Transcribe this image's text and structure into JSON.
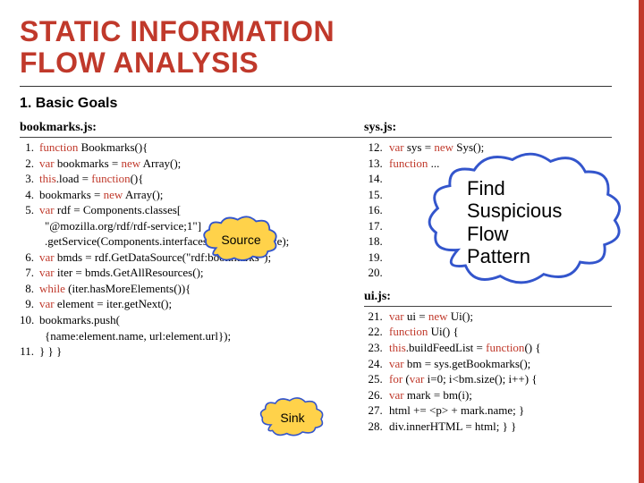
{
  "title_line1": "STATIC INFORMATION",
  "title_line2": "FLOW ANALYSIS",
  "subtitle": "1. Basic Goals",
  "colors": {
    "accent": "#c0392b",
    "cloud_border": "#3355cc",
    "source_fill": "#ffd24a",
    "sink_fill": "#ffd24a",
    "big_cloud_fill": "#ffffff"
  },
  "left": {
    "filename": "bookmarks.js:",
    "lines": [
      {
        "n": 1,
        "parts": [
          {
            "t": "function ",
            "kw": true
          },
          {
            "t": "Bookmarks(){"
          }
        ]
      },
      {
        "n": 2,
        "parts": [
          {
            "t": "var ",
            "kw": true
          },
          {
            "t": "bookmarks = "
          },
          {
            "t": "new ",
            "kw": true
          },
          {
            "t": "Array();"
          }
        ]
      },
      {
        "n": 3,
        "parts": [
          {
            "t": "this",
            "kw": true
          },
          {
            "t": ".load = "
          },
          {
            "t": "function",
            "kw": true
          },
          {
            "t": "(){"
          }
        ]
      },
      {
        "n": 4,
        "parts": [
          {
            "t": "   bookmarks = "
          },
          {
            "t": "new ",
            "kw": true
          },
          {
            "t": "Array();"
          }
        ]
      },
      {
        "n": 5,
        "parts": [
          {
            "t": "var ",
            "kw": true
          },
          {
            "t": "rdf = Components.classes["
          }
        ]
      },
      {
        "n": "",
        "parts": [
          {
            "t": "         \"@mozilla.org/rdf/rdf-service;1\"]"
          }
        ]
      },
      {
        "n": "",
        "parts": [
          {
            "t": "         .getService(Components.interfaces.nsIRDFService);"
          }
        ]
      },
      {
        "n": 6,
        "parts": [
          {
            "t": "var ",
            "kw": true
          },
          {
            "t": "bmds = rdf.GetDataSource(\"rdf:bookmarks\");"
          }
        ]
      },
      {
        "n": 7,
        "parts": [
          {
            "t": "var ",
            "kw": true
          },
          {
            "t": "iter = bmds.GetAllResources();"
          }
        ]
      },
      {
        "n": 8,
        "parts": [
          {
            "t": "while ",
            "kw": true
          },
          {
            "t": "(iter.hasMoreElements()){"
          }
        ]
      },
      {
        "n": 9,
        "parts": [
          {
            "t": "var ",
            "kw": true
          },
          {
            "t": "element = iter.getNext();"
          }
        ]
      },
      {
        "n": 10,
        "parts": [
          {
            "t": "   bookmarks.push("
          }
        ]
      },
      {
        "n": "",
        "parts": [
          {
            "t": "         {name:element.name, url:element.url});"
          }
        ]
      },
      {
        "n": 11,
        "parts": [
          {
            "t": "} } }"
          }
        ]
      }
    ]
  },
  "right_top": {
    "filename": "sys.js:",
    "start": 12,
    "lines": [
      {
        "parts": [
          {
            "t": "var ",
            "kw": true
          },
          {
            "t": "sys = "
          },
          {
            "t": "new ",
            "kw": true
          },
          {
            "t": "Sys();"
          }
        ]
      },
      {
        "parts": [
          {
            "t": "function ",
            "kw": true
          },
          {
            "t": "..."
          }
        ]
      },
      {
        "parts": [
          {
            "t": ""
          }
        ]
      },
      {
        "parts": [
          {
            "t": ""
          }
        ]
      },
      {
        "parts": [
          {
            "t": ""
          }
        ]
      },
      {
        "parts": [
          {
            "t": ""
          }
        ]
      },
      {
        "parts": [
          {
            "t": ""
          }
        ]
      },
      {
        "parts": [
          {
            "t": ""
          }
        ]
      },
      {
        "parts": [
          {
            "t": ""
          }
        ]
      }
    ]
  },
  "right_bottom": {
    "filename": "ui.js:",
    "start": 21,
    "lines": [
      {
        "parts": [
          {
            "t": "var ",
            "kw": true
          },
          {
            "t": "ui = "
          },
          {
            "t": "new ",
            "kw": true
          },
          {
            "t": "Ui();"
          }
        ]
      },
      {
        "parts": [
          {
            "t": "function ",
            "kw": true
          },
          {
            "t": "Ui() {"
          }
        ]
      },
      {
        "parts": [
          {
            "t": "this",
            "kw": true
          },
          {
            "t": ".buildFeedList = "
          },
          {
            "t": "function",
            "kw": true
          },
          {
            "t": "() {"
          }
        ]
      },
      {
        "parts": [
          {
            "t": "var ",
            "kw": true
          },
          {
            "t": "bm = sys.getBookmarks();"
          }
        ]
      },
      {
        "parts": [
          {
            "t": "for ",
            "kw": true
          },
          {
            "t": "("
          },
          {
            "t": "var ",
            "kw": true
          },
          {
            "t": "i=0; i<bm.size(); i++) {"
          }
        ]
      },
      {
        "parts": [
          {
            "t": "var ",
            "kw": true
          },
          {
            "t": "mark = bm(i);"
          }
        ]
      },
      {
        "parts": [
          {
            "t": "html += <p> + mark.name; }"
          }
        ]
      },
      {
        "parts": [
          {
            "t": "div.innerHTML = html; } }"
          }
        ]
      }
    ]
  },
  "source_label": "Source",
  "sink_label": "Sink",
  "big_cloud_text_l1": "Find",
  "big_cloud_text_l2": "Suspicious",
  "big_cloud_text_l3": "Flow",
  "big_cloud_text_l4": "Pattern"
}
